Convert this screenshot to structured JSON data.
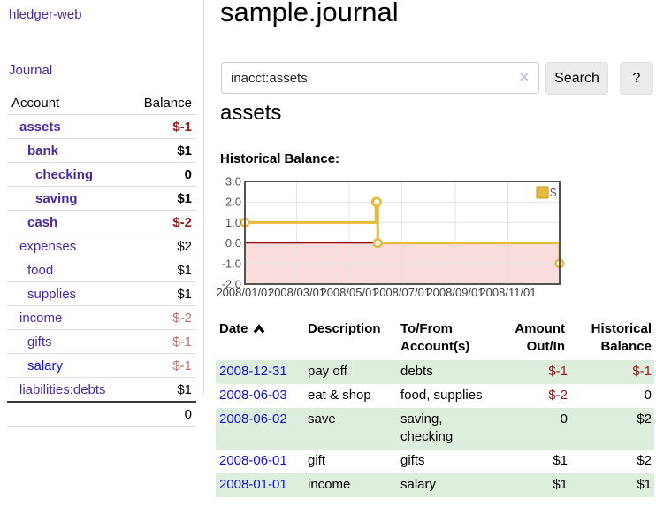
{
  "colors": {
    "link_purple": "#4b2a9e",
    "link_blue": "#1111cc",
    "negative_strong": "#9b1717",
    "negative_dim": "#bf6f6f",
    "row_stripe_green": "#ddeedd",
    "chart_line_gold": "#e6ba3c",
    "chart_zero_line": "#990000",
    "chart_negative_region": "#f9dcdc"
  },
  "sidebar": {
    "brand": "hledger-web",
    "journal_link": "Journal",
    "accounts": {
      "col_account": "Account",
      "col_balance": "Balance",
      "rows": [
        {
          "name": "assets",
          "balance": "$-1",
          "level": 1,
          "bold": true,
          "tone": "neg",
          "visited": true
        },
        {
          "name": "bank",
          "balance": "$1",
          "level": 2,
          "bold": true,
          "tone": "pos",
          "visited": true
        },
        {
          "name": "checking",
          "balance": "0",
          "level": 3,
          "bold": true,
          "tone": "pos",
          "visited": true
        },
        {
          "name": "saving",
          "balance": "$1",
          "level": 3,
          "bold": true,
          "tone": "pos",
          "visited": true
        },
        {
          "name": "cash",
          "balance": "$-2",
          "level": 2,
          "bold": true,
          "tone": "neg",
          "visited": true
        },
        {
          "name": "expenses",
          "balance": "$2",
          "level": 1,
          "bold": false,
          "tone": "pos",
          "visited": true
        },
        {
          "name": "food",
          "balance": "$1",
          "level": 2,
          "bold": false,
          "tone": "pos",
          "visited": true
        },
        {
          "name": "supplies",
          "balance": "$1",
          "level": 2,
          "bold": false,
          "tone": "pos",
          "visited": true
        },
        {
          "name": "income",
          "balance": "$-2",
          "level": 1,
          "bold": false,
          "tone": "negdim",
          "visited": true
        },
        {
          "name": "gifts",
          "balance": "$-1",
          "level": 2,
          "bold": false,
          "tone": "negdim",
          "visited": true
        },
        {
          "name": "salary",
          "balance": "$-1",
          "level": 2,
          "bold": false,
          "tone": "negdim",
          "visited": false
        },
        {
          "name": "liabilities:debts",
          "balance": "$1",
          "level": 1,
          "bold": false,
          "tone": "pos",
          "visited": true
        }
      ],
      "total": "0"
    }
  },
  "main": {
    "title": "sample.journal",
    "search": {
      "value": "inacct:assets",
      "clear_icon": "✕",
      "search_button": "Search",
      "help_button": "?"
    },
    "account_heading": "assets",
    "chart_title": "Historical Balance:"
  },
  "chart_data": {
    "type": "line",
    "step": true,
    "title": "Historical Balance",
    "series": [
      {
        "name": "$",
        "color": "#e6ba3c",
        "points": [
          {
            "date": "2008-01-01",
            "value": 1
          },
          {
            "date": "2008-06-01",
            "value": 2
          },
          {
            "date": "2008-06-02",
            "value": 2
          },
          {
            "date": "2008-06-03",
            "value": 0
          },
          {
            "date": "2008-12-31",
            "value": -1
          }
        ]
      }
    ],
    "x_range": [
      "2008-01-01",
      "2008-12-31"
    ],
    "ylim": [
      -2,
      3
    ],
    "y_ticks": [
      3.0,
      2.0,
      1.0,
      0.0,
      -1.0,
      -2.0
    ],
    "x_ticks": [
      "2008/01/01",
      "2008/03/01",
      "2008/05/01",
      "2008/07/01",
      "2008/09/01",
      "2008/11/01"
    ],
    "grid": true,
    "legend": {
      "label": "$",
      "position": "top-right"
    },
    "negative_region_color": "#f9dcdc",
    "zero_line_color": "#990000"
  },
  "register": {
    "headers": [
      {
        "lines": [
          "Date"
        ],
        "sorted": "asc",
        "align": "left"
      },
      {
        "lines": [
          "Description"
        ],
        "align": "left"
      },
      {
        "lines": [
          "To/From",
          "Account(s)"
        ],
        "align": "left"
      },
      {
        "lines": [
          "Amount",
          "Out/In"
        ],
        "align": "right"
      },
      {
        "lines": [
          "Historical",
          "Balance"
        ],
        "align": "right"
      }
    ],
    "rows": [
      {
        "date": "2008-12-31",
        "description": "pay off",
        "accounts": [
          "debts"
        ],
        "amount": "$-1",
        "balance": "$-1"
      },
      {
        "date": "2008-06-03",
        "description": "eat & shop",
        "accounts": [
          "food, supplies"
        ],
        "amount": "$-2",
        "balance": "0"
      },
      {
        "date": "2008-06-02",
        "description": "save",
        "accounts": [
          "saving,",
          "checking"
        ],
        "amount": "0",
        "balance": "$2"
      },
      {
        "date": "2008-06-01",
        "description": "gift",
        "accounts": [
          "gifts"
        ],
        "amount": "$1",
        "balance": "$2"
      },
      {
        "date": "2008-01-01",
        "description": "income",
        "accounts": [
          "salary"
        ],
        "amount": "$1",
        "balance": "$1"
      }
    ]
  }
}
